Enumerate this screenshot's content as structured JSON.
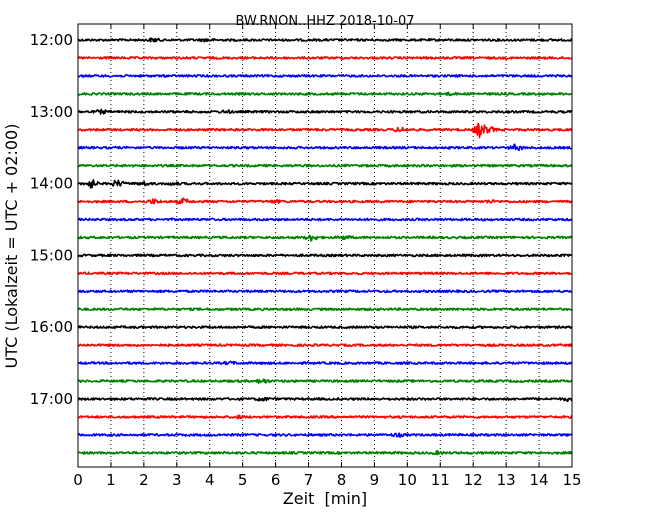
{
  "chart_data": {
    "type": "line",
    "title": "BW.RNON..HHZ 2018-10-07",
    "xlabel": "Zeit  [min]",
    "ylabel": "UTC (Lokalzeit = UTC + 02:00)",
    "xlim": [
      0,
      15
    ],
    "x_ticks": [
      0,
      1,
      2,
      3,
      4,
      5,
      6,
      7,
      8,
      9,
      10,
      11,
      12,
      13,
      14,
      15
    ],
    "x_tick_labels": [
      "0",
      "1",
      "2",
      "3",
      "4",
      "5",
      "6",
      "7",
      "8",
      "9",
      "10",
      "11",
      "12",
      "13",
      "14",
      "15"
    ],
    "y_tick_labels": [
      "12:00",
      "13:00",
      "14:00",
      "15:00",
      "16:00",
      "17:00"
    ],
    "grid": {
      "vertical_dotted": true
    },
    "trace_colors": [
      "#000000",
      "#ff0000",
      "#0000ff",
      "#008000"
    ],
    "traces": [
      {
        "start": "12:00",
        "color": "#000000",
        "events": [
          {
            "x": 2.3,
            "amp": 1.5
          },
          {
            "x": 3.9,
            "amp": 1.0
          }
        ]
      },
      {
        "start": "12:15",
        "color": "#ff0000",
        "events": []
      },
      {
        "start": "12:30",
        "color": "#0000ff",
        "events": []
      },
      {
        "start": "12:45",
        "color": "#008000",
        "events": [
          {
            "x": 11.3,
            "amp": 0.8
          }
        ]
      },
      {
        "start": "13:00",
        "color": "#000000",
        "events": [
          {
            "x": 0.7,
            "amp": 1.5
          },
          {
            "x": 4.5,
            "amp": 1.0
          }
        ]
      },
      {
        "start": "13:15",
        "color": "#ff0000",
        "events": [
          {
            "x": 9.8,
            "amp": 2.0
          },
          {
            "x": 12.2,
            "amp": 7.0
          },
          {
            "x": 12.5,
            "amp": 2.5
          }
        ]
      },
      {
        "start": "13:30",
        "color": "#0000ff",
        "events": [
          {
            "x": 13.3,
            "amp": 3.0
          }
        ]
      },
      {
        "start": "13:45",
        "color": "#008000",
        "events": []
      },
      {
        "start": "14:00",
        "color": "#000000",
        "events": [
          {
            "x": 0.4,
            "amp": 4.0
          },
          {
            "x": 1.2,
            "amp": 3.0
          },
          {
            "x": 2.0,
            "amp": 1.5
          },
          {
            "x": 2.9,
            "amp": 1.0
          }
        ]
      },
      {
        "start": "14:15",
        "color": "#ff0000",
        "events": [
          {
            "x": 2.3,
            "amp": 2.0
          },
          {
            "x": 3.2,
            "amp": 2.5
          },
          {
            "x": 6.0,
            "amp": 1.0
          },
          {
            "x": 12.5,
            "amp": 1.0
          }
        ]
      },
      {
        "start": "14:30",
        "color": "#0000ff",
        "events": []
      },
      {
        "start": "14:45",
        "color": "#008000",
        "events": [
          {
            "x": 7.1,
            "amp": 3.0
          },
          {
            "x": 8.1,
            "amp": 1.5
          }
        ]
      },
      {
        "start": "15:00",
        "color": "#000000",
        "events": []
      },
      {
        "start": "15:15",
        "color": "#ff0000",
        "events": []
      },
      {
        "start": "15:30",
        "color": "#0000ff",
        "events": []
      },
      {
        "start": "15:45",
        "color": "#008000",
        "events": []
      },
      {
        "start": "16:00",
        "color": "#000000",
        "events": []
      },
      {
        "start": "16:15",
        "color": "#ff0000",
        "events": []
      },
      {
        "start": "16:30",
        "color": "#0000ff",
        "events": [
          {
            "x": 4.6,
            "amp": 1.0
          }
        ]
      },
      {
        "start": "16:45",
        "color": "#008000",
        "events": [
          {
            "x": 5.6,
            "amp": 2.0
          }
        ]
      },
      {
        "start": "17:00",
        "color": "#000000",
        "events": [
          {
            "x": 5.6,
            "amp": 1.5
          },
          {
            "x": 14.9,
            "amp": 1.5
          }
        ]
      },
      {
        "start": "17:15",
        "color": "#ff0000",
        "events": [
          {
            "x": 4.9,
            "amp": 1.0
          }
        ]
      },
      {
        "start": "17:30",
        "color": "#0000ff",
        "events": [
          {
            "x": 9.7,
            "amp": 1.5
          }
        ]
      },
      {
        "start": "17:45",
        "color": "#008000",
        "events": [
          {
            "x": 10.9,
            "amp": 1.0
          }
        ]
      }
    ]
  }
}
